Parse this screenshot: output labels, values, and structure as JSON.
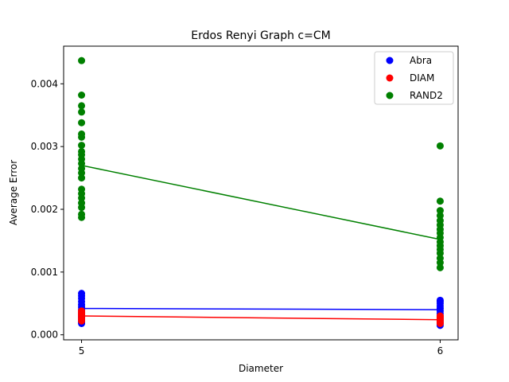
{
  "chart_data": {
    "type": "scatter",
    "title": "Erdos Renyi Graph c=CM",
    "xlabel": "Diameter",
    "ylabel": "Average Error",
    "x_ticks": [
      "5",
      "6"
    ],
    "y_ticks": [
      "0.000",
      "0.001",
      "0.002",
      "0.003",
      "0.004"
    ],
    "xlim": [
      4.95,
      6.05
    ],
    "ylim": [
      -8e-05,
      0.0046
    ],
    "grid": false,
    "legend_position": "top-right",
    "series": [
      {
        "name": "Abra",
        "color": "#0000ff",
        "points": [
          [
            5,
            0.00018
          ],
          [
            5,
            0.0002
          ],
          [
            5,
            0.00022
          ],
          [
            5,
            0.00025
          ],
          [
            5,
            0.00028
          ],
          [
            5,
            0.0003
          ],
          [
            5,
            0.00033
          ],
          [
            5,
            0.00036
          ],
          [
            5,
            0.0004
          ],
          [
            5,
            0.00044
          ],
          [
            5,
            0.00048
          ],
          [
            5,
            0.00053
          ],
          [
            5,
            0.00058
          ],
          [
            5,
            0.00062
          ],
          [
            5,
            0.00066
          ],
          [
            6,
            0.00015
          ],
          [
            6,
            0.00018
          ],
          [
            6,
            0.0002
          ],
          [
            6,
            0.00023
          ],
          [
            6,
            0.00026
          ],
          [
            6,
            0.0003
          ],
          [
            6,
            0.00034
          ],
          [
            6,
            0.00038
          ],
          [
            6,
            0.00042
          ],
          [
            6,
            0.00046
          ],
          [
            6,
            0.0005
          ],
          [
            6,
            0.00053
          ],
          [
            6,
            0.00055
          ]
        ],
        "trend": [
          [
            5,
            0.00042
          ],
          [
            6,
            0.0004
          ]
        ]
      },
      {
        "name": "DIAM",
        "color": "#ff0000",
        "points": [
          [
            5,
            0.00022
          ],
          [
            5,
            0.00025
          ],
          [
            5,
            0.00027
          ],
          [
            5,
            0.0003
          ],
          [
            5,
            0.00032
          ],
          [
            5,
            0.00034
          ],
          [
            5,
            0.00036
          ],
          [
            5,
            0.00038
          ],
          [
            6,
            0.00018
          ],
          [
            6,
            0.0002
          ],
          [
            6,
            0.00022
          ],
          [
            6,
            0.00024
          ],
          [
            6,
            0.00026
          ],
          [
            6,
            0.00028
          ],
          [
            6,
            0.0003
          ]
        ],
        "trend": [
          [
            5,
            0.0003
          ],
          [
            6,
            0.00024
          ]
        ]
      },
      {
        "name": "RAND2",
        "color": "#008000",
        "points": [
          [
            5,
            0.00437
          ],
          [
            5,
            0.00382
          ],
          [
            5,
            0.00365
          ],
          [
            5,
            0.00355
          ],
          [
            5,
            0.00338
          ],
          [
            5,
            0.0032
          ],
          [
            5,
            0.00315
          ],
          [
            5,
            0.00302
          ],
          [
            5,
            0.00292
          ],
          [
            5,
            0.00287
          ],
          [
            5,
            0.0028
          ],
          [
            5,
            0.00273
          ],
          [
            5,
            0.00265
          ],
          [
            5,
            0.00258
          ],
          [
            5,
            0.0025
          ],
          [
            5,
            0.00232
          ],
          [
            5,
            0.00225
          ],
          [
            5,
            0.00218
          ],
          [
            5,
            0.0021
          ],
          [
            5,
            0.00203
          ],
          [
            5,
            0.00192
          ],
          [
            5,
            0.00187
          ],
          [
            6,
            0.00301
          ],
          [
            6,
            0.00213
          ],
          [
            6,
            0.00198
          ],
          [
            6,
            0.0019
          ],
          [
            6,
            0.00182
          ],
          [
            6,
            0.00175
          ],
          [
            6,
            0.00168
          ],
          [
            6,
            0.00162
          ],
          [
            6,
            0.00155
          ],
          [
            6,
            0.00148
          ],
          [
            6,
            0.00142
          ],
          [
            6,
            0.00136
          ],
          [
            6,
            0.0013
          ],
          [
            6,
            0.00122
          ],
          [
            6,
            0.00115
          ],
          [
            6,
            0.00107
          ]
        ],
        "trend": [
          [
            5,
            0.0027
          ],
          [
            6,
            0.00152
          ]
        ]
      }
    ]
  }
}
